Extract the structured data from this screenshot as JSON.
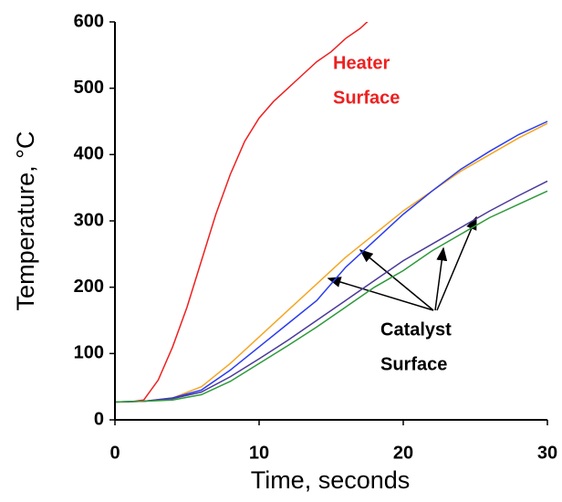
{
  "chart_data": {
    "type": "line",
    "xlabel": "Time, seconds",
    "ylabel": "Temperature, °C",
    "xlim": [
      0,
      30
    ],
    "xticks": [
      0,
      10,
      20,
      30
    ],
    "ylim": [
      0,
      600
    ],
    "yticks": [
      0,
      100,
      200,
      300,
      400,
      500,
      600
    ],
    "series": [
      {
        "color": "#ee2020",
        "x": [
          0,
          1,
          2,
          3,
          4,
          5,
          6,
          7,
          8,
          9,
          10,
          11,
          12,
          13,
          14,
          15,
          16,
          17,
          18
        ],
        "values": [
          27,
          27,
          30,
          60,
          110,
          170,
          240,
          310,
          370,
          420,
          455,
          480,
          500,
          520,
          540,
          555,
          575,
          590,
          610
        ]
      },
      {
        "color": "#f5a623",
        "x": [
          0,
          2,
          4,
          6,
          8,
          10,
          12,
          14,
          16,
          18,
          20,
          22,
          24,
          26,
          28,
          30
        ],
        "values": [
          27,
          28,
          33,
          50,
          85,
          125,
          165,
          205,
          245,
          280,
          315,
          345,
          375,
          400,
          425,
          447
        ]
      },
      {
        "color": "#2a3cf0",
        "x": [
          0,
          2,
          4,
          6,
          8,
          10,
          12,
          14,
          16,
          18,
          20,
          22,
          24,
          26,
          28,
          30
        ],
        "values": [
          27,
          28,
          33,
          45,
          75,
          110,
          145,
          180,
          230,
          270,
          310,
          345,
          378,
          405,
          430,
          450
        ]
      },
      {
        "color": "#4b3a9a",
        "x": [
          0,
          2,
          4,
          6,
          8,
          10,
          12,
          14,
          16,
          18,
          20,
          22,
          24,
          26,
          28,
          30
        ],
        "values": [
          27,
          28,
          32,
          42,
          65,
          92,
          120,
          150,
          180,
          210,
          240,
          265,
          290,
          315,
          338,
          360
        ]
      },
      {
        "color": "#2e9a3a",
        "x": [
          0,
          2,
          4,
          6,
          8,
          10,
          12,
          14,
          16,
          18,
          20,
          22,
          24,
          26,
          28,
          30
        ],
        "values": [
          27,
          28,
          30,
          38,
          58,
          85,
          112,
          140,
          170,
          200,
          225,
          255,
          280,
          305,
          325,
          345
        ]
      }
    ],
    "annotations": [
      {
        "lines": [
          "Heater",
          "Surface"
        ],
        "color": "#ee2020"
      },
      {
        "lines": [
          "Catalyst",
          "Surface"
        ],
        "color": "#000000"
      }
    ]
  }
}
